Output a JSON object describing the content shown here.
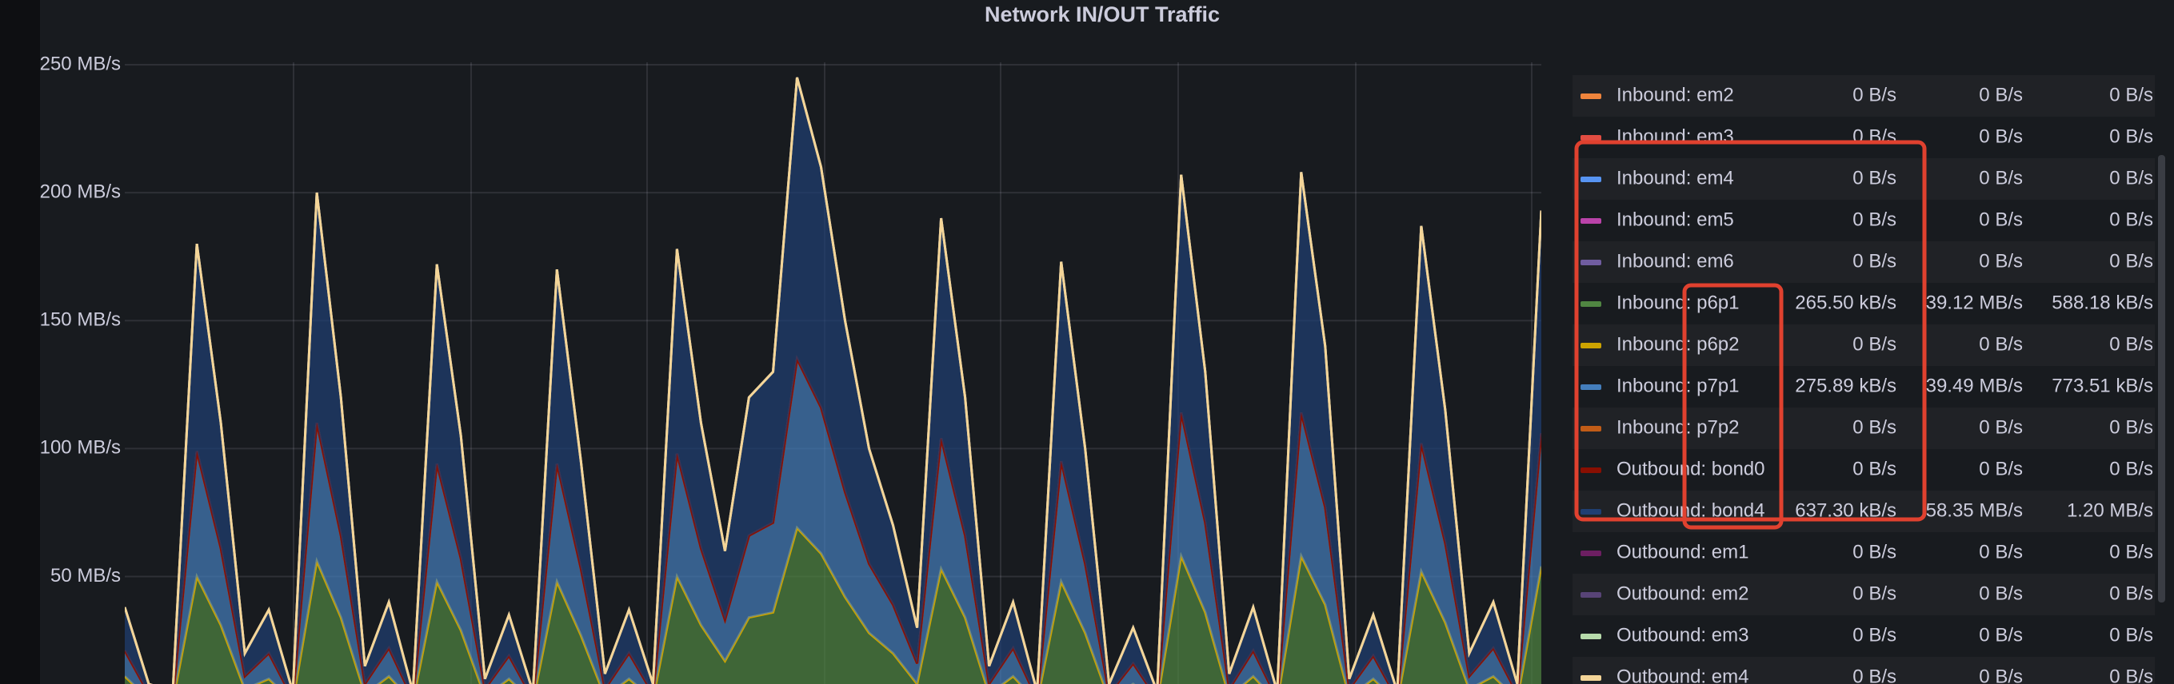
{
  "chart_data": {
    "type": "area",
    "stacked": true,
    "title": "Network IN/OUT Traffic",
    "categories": [
      null,
      null,
      null,
      null,
      null,
      null,
      null,
      null,
      null,
      null,
      null,
      null,
      null,
      null,
      null,
      null,
      null,
      null,
      null,
      null,
      null,
      null,
      null,
      null,
      null,
      null,
      null,
      null,
      null,
      null,
      null,
      null,
      null,
      null,
      null,
      null,
      null,
      null,
      null,
      null,
      null,
      null,
      null,
      null,
      null,
      null,
      null,
      null,
      null,
      null,
      null,
      null,
      null,
      null,
      null,
      null,
      null,
      null,
      null,
      null
    ],
    "ylim": [
      8,
      250
    ],
    "yticks": [
      {
        "value": 50,
        "label": "50 MB/s"
      },
      {
        "value": 100,
        "label": "100 MB/s"
      },
      {
        "value": 150,
        "label": "150 MB/s"
      },
      {
        "value": 200,
        "label": "200 MB/s"
      },
      {
        "value": 250,
        "label": "250 MB/s"
      }
    ],
    "grid": true,
    "legend": "right",
    "series": [
      {
        "name": "Inbound: em2",
        "color": "#ef843c",
        "legend_values": [
          "0 B/s",
          "0 B/s",
          "0 B/s"
        ],
        "values": [
          0,
          0,
          0,
          0,
          0,
          0,
          0,
          0,
          0,
          0,
          0,
          0,
          0,
          0,
          0,
          0,
          0,
          0,
          0,
          0,
          0,
          0,
          0,
          0,
          0,
          0,
          0,
          0,
          0,
          0,
          0,
          0,
          0,
          0,
          0,
          0,
          0,
          0,
          0,
          0,
          0,
          0,
          0,
          0,
          0,
          0,
          0,
          0,
          0,
          0,
          0,
          0,
          0,
          0,
          0,
          0,
          0,
          0,
          0,
          0
        ]
      },
      {
        "name": "Inbound: em3",
        "color": "#e24d42",
        "legend_values": [
          "0 B/s",
          "0 B/s",
          "0 B/s"
        ],
        "values": [
          0,
          0,
          0,
          0,
          0,
          0,
          0,
          0,
          0,
          0,
          0,
          0,
          0,
          0,
          0,
          0,
          0,
          0,
          0,
          0,
          0,
          0,
          0,
          0,
          0,
          0,
          0,
          0,
          0,
          0,
          0,
          0,
          0,
          0,
          0,
          0,
          0,
          0,
          0,
          0,
          0,
          0,
          0,
          0,
          0,
          0,
          0,
          0,
          0,
          0,
          0,
          0,
          0,
          0,
          0,
          0,
          0,
          0,
          0,
          0
        ]
      },
      {
        "name": "Inbound: em4",
        "color": "#5794f2",
        "legend_values": [
          "0 B/s",
          "0 B/s",
          "0 B/s"
        ],
        "values": [
          0,
          0,
          0,
          0,
          0,
          0,
          0,
          0,
          0,
          0,
          0,
          0,
          0,
          0,
          0,
          0,
          0,
          0,
          0,
          0,
          0,
          0,
          0,
          0,
          0,
          0,
          0,
          0,
          0,
          0,
          0,
          0,
          0,
          0,
          0,
          0,
          0,
          0,
          0,
          0,
          0,
          0,
          0,
          0,
          0,
          0,
          0,
          0,
          0,
          0,
          0,
          0,
          0,
          0,
          0,
          0,
          0,
          0,
          0,
          0
        ]
      },
      {
        "name": "Inbound: em5",
        "color": "#ba43a9",
        "legend_values": [
          "0 B/s",
          "0 B/s",
          "0 B/s"
        ],
        "values": [
          0,
          0,
          0,
          0,
          0,
          0,
          0,
          0,
          0,
          0,
          0,
          0,
          0,
          0,
          0,
          0,
          0,
          0,
          0,
          0,
          0,
          0,
          0,
          0,
          0,
          0,
          0,
          0,
          0,
          0,
          0,
          0,
          0,
          0,
          0,
          0,
          0,
          0,
          0,
          0,
          0,
          0,
          0,
          0,
          0,
          0,
          0,
          0,
          0,
          0,
          0,
          0,
          0,
          0,
          0,
          0,
          0,
          0,
          0,
          0
        ]
      },
      {
        "name": "Inbound: em6",
        "color": "#705da0",
        "legend_values": [
          "0 B/s",
          "0 B/s",
          "0 B/s"
        ],
        "values": [
          0,
          0,
          0,
          0,
          0,
          0,
          0,
          0,
          0,
          0,
          0,
          0,
          0,
          0,
          0,
          0,
          0,
          0,
          0,
          0,
          0,
          0,
          0,
          0,
          0,
          0,
          0,
          0,
          0,
          0,
          0,
          0,
          0,
          0,
          0,
          0,
          0,
          0,
          0,
          0,
          0,
          0,
          0,
          0,
          0,
          0,
          0,
          0,
          0,
          0,
          0,
          0,
          0,
          0,
          0,
          0,
          0,
          0,
          0,
          0
        ]
      },
      {
        "name": "Inbound: p6p1",
        "color": "#508642",
        "legend_values": [
          "265.50 kB/s",
          "39.12 MB/s",
          "588.18 kB/s"
        ],
        "values": [
          11,
          2,
          1,
          50,
          31,
          6,
          10,
          1,
          56,
          34,
          4,
          11,
          1,
          48,
          29,
          3,
          10,
          1,
          48,
          27,
          3,
          10,
          2,
          50,
          31,
          17,
          34,
          36,
          69,
          59,
          42,
          28,
          20,
          8,
          53,
          34,
          4,
          11,
          1,
          48,
          28,
          2,
          8,
          1,
          58,
          36,
          3,
          11,
          1,
          58,
          39,
          3,
          10,
          1,
          52,
          32,
          6,
          11,
          2,
          54
        ]
      },
      {
        "name": "Inbound: p6p2",
        "color": "#cca300",
        "legend_values": [
          "0 B/s",
          "0 B/s",
          "0 B/s"
        ],
        "values": [
          0,
          0,
          0,
          0,
          0,
          0,
          0,
          0,
          0,
          0,
          0,
          0,
          0,
          0,
          0,
          0,
          0,
          0,
          0,
          0,
          0,
          0,
          0,
          0,
          0,
          0,
          0,
          0,
          0,
          0,
          0,
          0,
          0,
          0,
          0,
          0,
          0,
          0,
          0,
          0,
          0,
          0,
          0,
          0,
          0,
          0,
          0,
          0,
          0,
          0,
          0,
          0,
          0,
          0,
          0,
          0,
          0,
          0,
          0,
          0
        ]
      },
      {
        "name": "Inbound: p7p1",
        "color": "#447ebc",
        "legend_values": [
          "275.89 kB/s",
          "39.49 MB/s",
          "773.51 kB/s"
        ],
        "values": [
          10,
          2,
          1,
          49,
          30,
          5,
          10,
          1,
          54,
          32,
          4,
          11,
          1,
          46,
          28,
          3,
          9,
          1,
          46,
          26,
          3,
          10,
          2,
          48,
          30,
          16,
          32,
          35,
          66,
          57,
          41,
          27,
          19,
          8,
          51,
          32,
          4,
          11,
          1,
          47,
          27,
          2,
          8,
          1,
          56,
          35,
          3,
          10,
          1,
          56,
          38,
          3,
          9,
          1,
          50,
          31,
          5,
          11,
          2,
          52
        ]
      },
      {
        "name": "Inbound: p7p2",
        "color": "#c15c17",
        "legend_values": [
          "0 B/s",
          "0 B/s",
          "0 B/s"
        ],
        "values": [
          0,
          0,
          0,
          0,
          0,
          0,
          0,
          0,
          0,
          0,
          0,
          0,
          0,
          0,
          0,
          0,
          0,
          0,
          0,
          0,
          0,
          0,
          0,
          0,
          0,
          0,
          0,
          0,
          0,
          0,
          0,
          0,
          0,
          0,
          0,
          0,
          0,
          0,
          0,
          0,
          0,
          0,
          0,
          0,
          0,
          0,
          0,
          0,
          0,
          0,
          0,
          0,
          0,
          0,
          0,
          0,
          0,
          0,
          0,
          0
        ]
      },
      {
        "name": "Outbound: bond0",
        "color": "#890f02",
        "legend_values": [
          "0 B/s",
          "0 B/s",
          "0 B/s"
        ],
        "values": [
          0,
          0,
          0,
          0,
          0,
          0,
          0,
          0,
          0,
          0,
          0,
          0,
          0,
          0,
          0,
          0,
          0,
          0,
          0,
          0,
          0,
          0,
          0,
          0,
          0,
          0,
          0,
          0,
          0,
          0,
          0,
          0,
          0,
          0,
          0,
          0,
          0,
          0,
          0,
          0,
          0,
          0,
          0,
          0,
          0,
          0,
          0,
          0,
          0,
          0,
          0,
          0,
          0,
          0,
          0,
          0,
          0,
          0,
          0,
          0
        ]
      },
      {
        "name": "Outbound: bond4",
        "color": "#1f3f73",
        "legend_values": [
          "637.30 kB/s",
          "58.35 MB/s",
          "1.20 MB/s"
        ],
        "values": [
          17,
          4,
          3,
          81,
          49,
          9,
          17,
          3,
          90,
          54,
          7,
          18,
          3,
          78,
          48,
          4,
          16,
          3,
          76,
          42,
          6,
          17,
          4,
          80,
          49,
          27,
          54,
          59,
          110,
          94,
          67,
          45,
          31,
          14,
          86,
          54,
          7,
          18,
          3,
          78,
          45,
          4,
          14,
          3,
          93,
          59,
          6,
          17,
          3,
          94,
          63,
          4,
          16,
          3,
          85,
          52,
          9,
          18,
          4,
          87
        ]
      },
      {
        "name": "Outbound: em1",
        "color": "#6d1f62",
        "legend_values": [
          "0 B/s",
          "0 B/s",
          "0 B/s"
        ],
        "values": [
          0,
          0,
          0,
          0,
          0,
          0,
          0,
          0,
          0,
          0,
          0,
          0,
          0,
          0,
          0,
          0,
          0,
          0,
          0,
          0,
          0,
          0,
          0,
          0,
          0,
          0,
          0,
          0,
          0,
          0,
          0,
          0,
          0,
          0,
          0,
          0,
          0,
          0,
          0,
          0,
          0,
          0,
          0,
          0,
          0,
          0,
          0,
          0,
          0,
          0,
          0,
          0,
          0,
          0,
          0,
          0,
          0,
          0,
          0,
          0
        ]
      },
      {
        "name": "Outbound: em2",
        "color": "#584477",
        "legend_values": [
          "0 B/s",
          "0 B/s",
          "0 B/s"
        ],
        "values": [
          0,
          0,
          0,
          0,
          0,
          0,
          0,
          0,
          0,
          0,
          0,
          0,
          0,
          0,
          0,
          0,
          0,
          0,
          0,
          0,
          0,
          0,
          0,
          0,
          0,
          0,
          0,
          0,
          0,
          0,
          0,
          0,
          0,
          0,
          0,
          0,
          0,
          0,
          0,
          0,
          0,
          0,
          0,
          0,
          0,
          0,
          0,
          0,
          0,
          0,
          0,
          0,
          0,
          0,
          0,
          0,
          0,
          0,
          0,
          0
        ]
      },
      {
        "name": "Outbound: em3",
        "color": "#b7dbab",
        "legend_values": [
          "0 B/s",
          "0 B/s",
          "0 B/s"
        ],
        "values": [
          0,
          0,
          0,
          0,
          0,
          0,
          0,
          0,
          0,
          0,
          0,
          0,
          0,
          0,
          0,
          0,
          0,
          0,
          0,
          0,
          0,
          0,
          0,
          0,
          0,
          0,
          0,
          0,
          0,
          0,
          0,
          0,
          0,
          0,
          0,
          0,
          0,
          0,
          0,
          0,
          0,
          0,
          0,
          0,
          0,
          0,
          0,
          0,
          0,
          0,
          0,
          0,
          0,
          0,
          0,
          0,
          0,
          0,
          0,
          0
        ]
      },
      {
        "name": "Outbound: em4",
        "color": "#f4d598",
        "legend_values": [
          "0 B/s",
          "0 B/s",
          "0 B/s"
        ],
        "values": [
          0,
          0,
          0,
          0,
          0,
          0,
          0,
          0,
          0,
          0,
          0,
          0,
          0,
          0,
          0,
          0,
          0,
          0,
          0,
          0,
          0,
          0,
          0,
          0,
          0,
          0,
          0,
          0,
          0,
          0,
          0,
          0,
          0,
          0,
          0,
          0,
          0,
          0,
          0,
          0,
          0,
          0,
          0,
          0,
          0,
          0,
          0,
          0,
          0,
          0,
          0,
          0,
          0,
          0,
          0,
          0,
          0,
          0,
          0,
          0
        ]
      }
    ]
  }
}
